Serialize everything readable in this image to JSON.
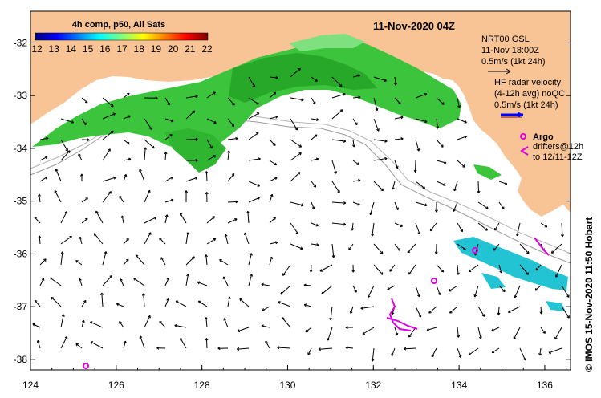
{
  "title": "11-Nov-2020 04Z",
  "colorbar": {
    "title": "4h comp, p50, All Sats",
    "ticks": [
      "12",
      "13",
      "14",
      "15",
      "16",
      "17",
      "18",
      "19",
      "20",
      "21",
      "22"
    ],
    "colors": [
      "#00007f",
      "#0000ff",
      "#007fff",
      "#00ffff",
      "#7fff7f",
      "#ffff00",
      "#ff7f00",
      "#ff0000",
      "#7f0000"
    ]
  },
  "legend": {
    "nrt_lines": [
      "NRT00 GSL",
      "11-Nov 18:00Z",
      "0.5m/s (1kt 24h)"
    ],
    "hf_lines": [
      "HF radar velocity",
      "(4-12h avg) noQC",
      "0.5m/s (1kt 24h)"
    ],
    "argo_label": "Argo",
    "drifter_lines": [
      "drifters@12h",
      "to 12/11-12Z"
    ]
  },
  "axes": {
    "x_ticks": [
      "124",
      "126",
      "128",
      "130",
      "132",
      "134",
      "136"
    ],
    "y_ticks": [
      "-32",
      "-33",
      "-34",
      "-35",
      "-36",
      "-37",
      "-38"
    ],
    "x_range": [
      124,
      136.6
    ],
    "y_range": [
      -38.2,
      -31.4
    ]
  },
  "credit": "© IMOS 15-Nov-2020 11:50 Hobart",
  "colors": {
    "land": "#f9c495",
    "sea": "#ffffff",
    "sst_green_dark": "#2ca02c",
    "sst_green": "#3cc43c",
    "sst_green_light": "#7fe07f",
    "sst_cyan": "#22c4d4",
    "argo": "#e000e0",
    "hf_arrow": "#0000ff"
  }
}
